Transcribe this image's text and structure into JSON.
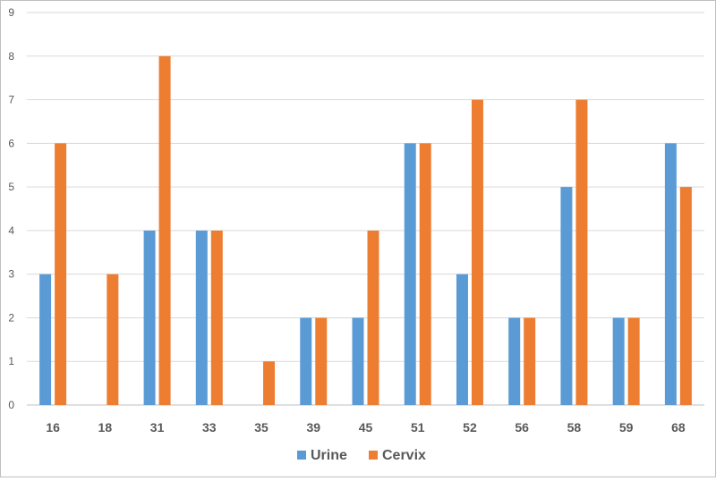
{
  "chart_data": {
    "type": "bar",
    "title": "",
    "xlabel": "",
    "ylabel": "",
    "categories": [
      "16",
      "18",
      "31",
      "33",
      "35",
      "39",
      "45",
      "51",
      "52",
      "56",
      "58",
      "59",
      "68"
    ],
    "series": [
      {
        "name": "Urine",
        "color": "#5b9bd5",
        "values": [
          3,
          0,
          4,
          4,
          0,
          2,
          2,
          6,
          3,
          2,
          5,
          2,
          6
        ]
      },
      {
        "name": "Cervix",
        "color": "#ed7d31",
        "values": [
          6,
          3,
          8,
          4,
          1,
          2,
          4,
          6,
          7,
          2,
          7,
          2,
          5
        ]
      }
    ],
    "ylim": [
      0,
      9
    ],
    "yticks": [
      0,
      1,
      2,
      3,
      4,
      5,
      6,
      7,
      8,
      9
    ],
    "grid": true,
    "legend_position": "bottom"
  }
}
